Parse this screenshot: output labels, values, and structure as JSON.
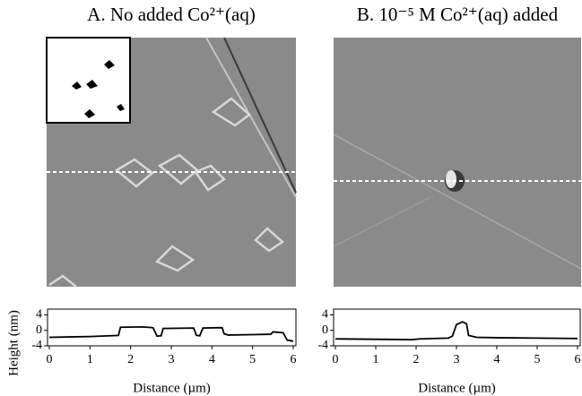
{
  "chart_data": [
    {
      "type": "line",
      "title": "A. No added Co²⁺(aq)",
      "ylabel": "Height (nm)",
      "xlabel": "Distance (µm)",
      "x": [
        0,
        0.5,
        1,
        1.5,
        1.7,
        1.75,
        2.3,
        2.55,
        2.65,
        2.75,
        2.8,
        3.55,
        3.62,
        3.7,
        3.78,
        4.25,
        4.3,
        4.4,
        5.0,
        5.45,
        5.5,
        5.75,
        5.85,
        6
      ],
      "values": [
        -1.8,
        -1.7,
        -1.6,
        -1.4,
        -1.3,
        0.8,
        0.9,
        0.7,
        -1.5,
        -1.4,
        0.5,
        0.6,
        -1.3,
        -1.4,
        0.6,
        0.7,
        -0.9,
        -1.2,
        -1.1,
        -1.0,
        -0.4,
        -0.6,
        -2.5,
        -2.8
      ],
      "color": "#000000",
      "xlim": [
        0,
        6
      ],
      "ylim": [
        -4,
        5.5
      ],
      "xticks": [
        0,
        1,
        2,
        3,
        4,
        5,
        6
      ],
      "yticks": [
        -4,
        0,
        4
      ]
    },
    {
      "type": "line",
      "title": "B. 10⁻⁵ M Co²⁺(aq) added",
      "xlabel": "Distance (µm)",
      "x": [
        0,
        1,
        1.9,
        2.1,
        2.8,
        2.9,
        3.0,
        3.15,
        3.25,
        3.3,
        3.5,
        4,
        5,
        6
      ],
      "values": [
        -2.2,
        -2.3,
        -2.4,
        -2.2,
        -2.0,
        -1.5,
        1.5,
        2.2,
        1.7,
        -1.3,
        -1.8,
        -1.9,
        -2.0,
        -2.1
      ],
      "color": "#000000",
      "xlim": [
        0,
        6
      ],
      "ylim": [
        -4,
        5.5
      ],
      "xticks": [
        0,
        1,
        2,
        3,
        4,
        5,
        6
      ],
      "yticks": [
        -4,
        0,
        4
      ]
    }
  ]
}
